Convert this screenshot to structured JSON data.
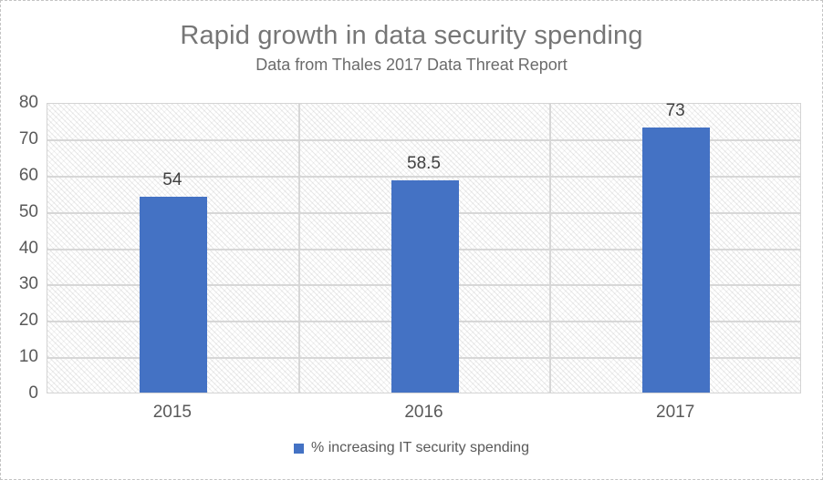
{
  "header": {
    "title": "Rapid growth in data security spending",
    "subtitle": "Data from Thales 2017 Data Threat Report"
  },
  "legend": {
    "label": "% increasing IT security spending",
    "swatch_color": "#4472C4"
  },
  "chart_data": {
    "type": "bar",
    "title": "Rapid growth in data security spending",
    "subtitle": "Data from Thales 2017 Data Threat Report",
    "categories": [
      "2015",
      "2016",
      "2017"
    ],
    "series": [
      {
        "name": "% increasing IT security spending",
        "values": [
          54,
          58.5,
          73
        ]
      }
    ],
    "data_labels": [
      "54",
      "58.5",
      "73"
    ],
    "xlabel": "",
    "ylabel": "",
    "ylim": [
      0,
      80
    ],
    "yticks": [
      0,
      10,
      20,
      30,
      40,
      50,
      60,
      70,
      80
    ],
    "grid": "horizontal gridlines every 10 plus vertical category separators, crosshatch plot fill",
    "legend_position": "bottom",
    "colors": {
      "bar": "#4472C4",
      "gridline": "#d7d7d7",
      "axis_text": "#595959",
      "data_label_text": "#404040",
      "title_text": "#767676",
      "plot_border": "#d4d4d4",
      "canvas_border": "#c4c4c4"
    }
  }
}
